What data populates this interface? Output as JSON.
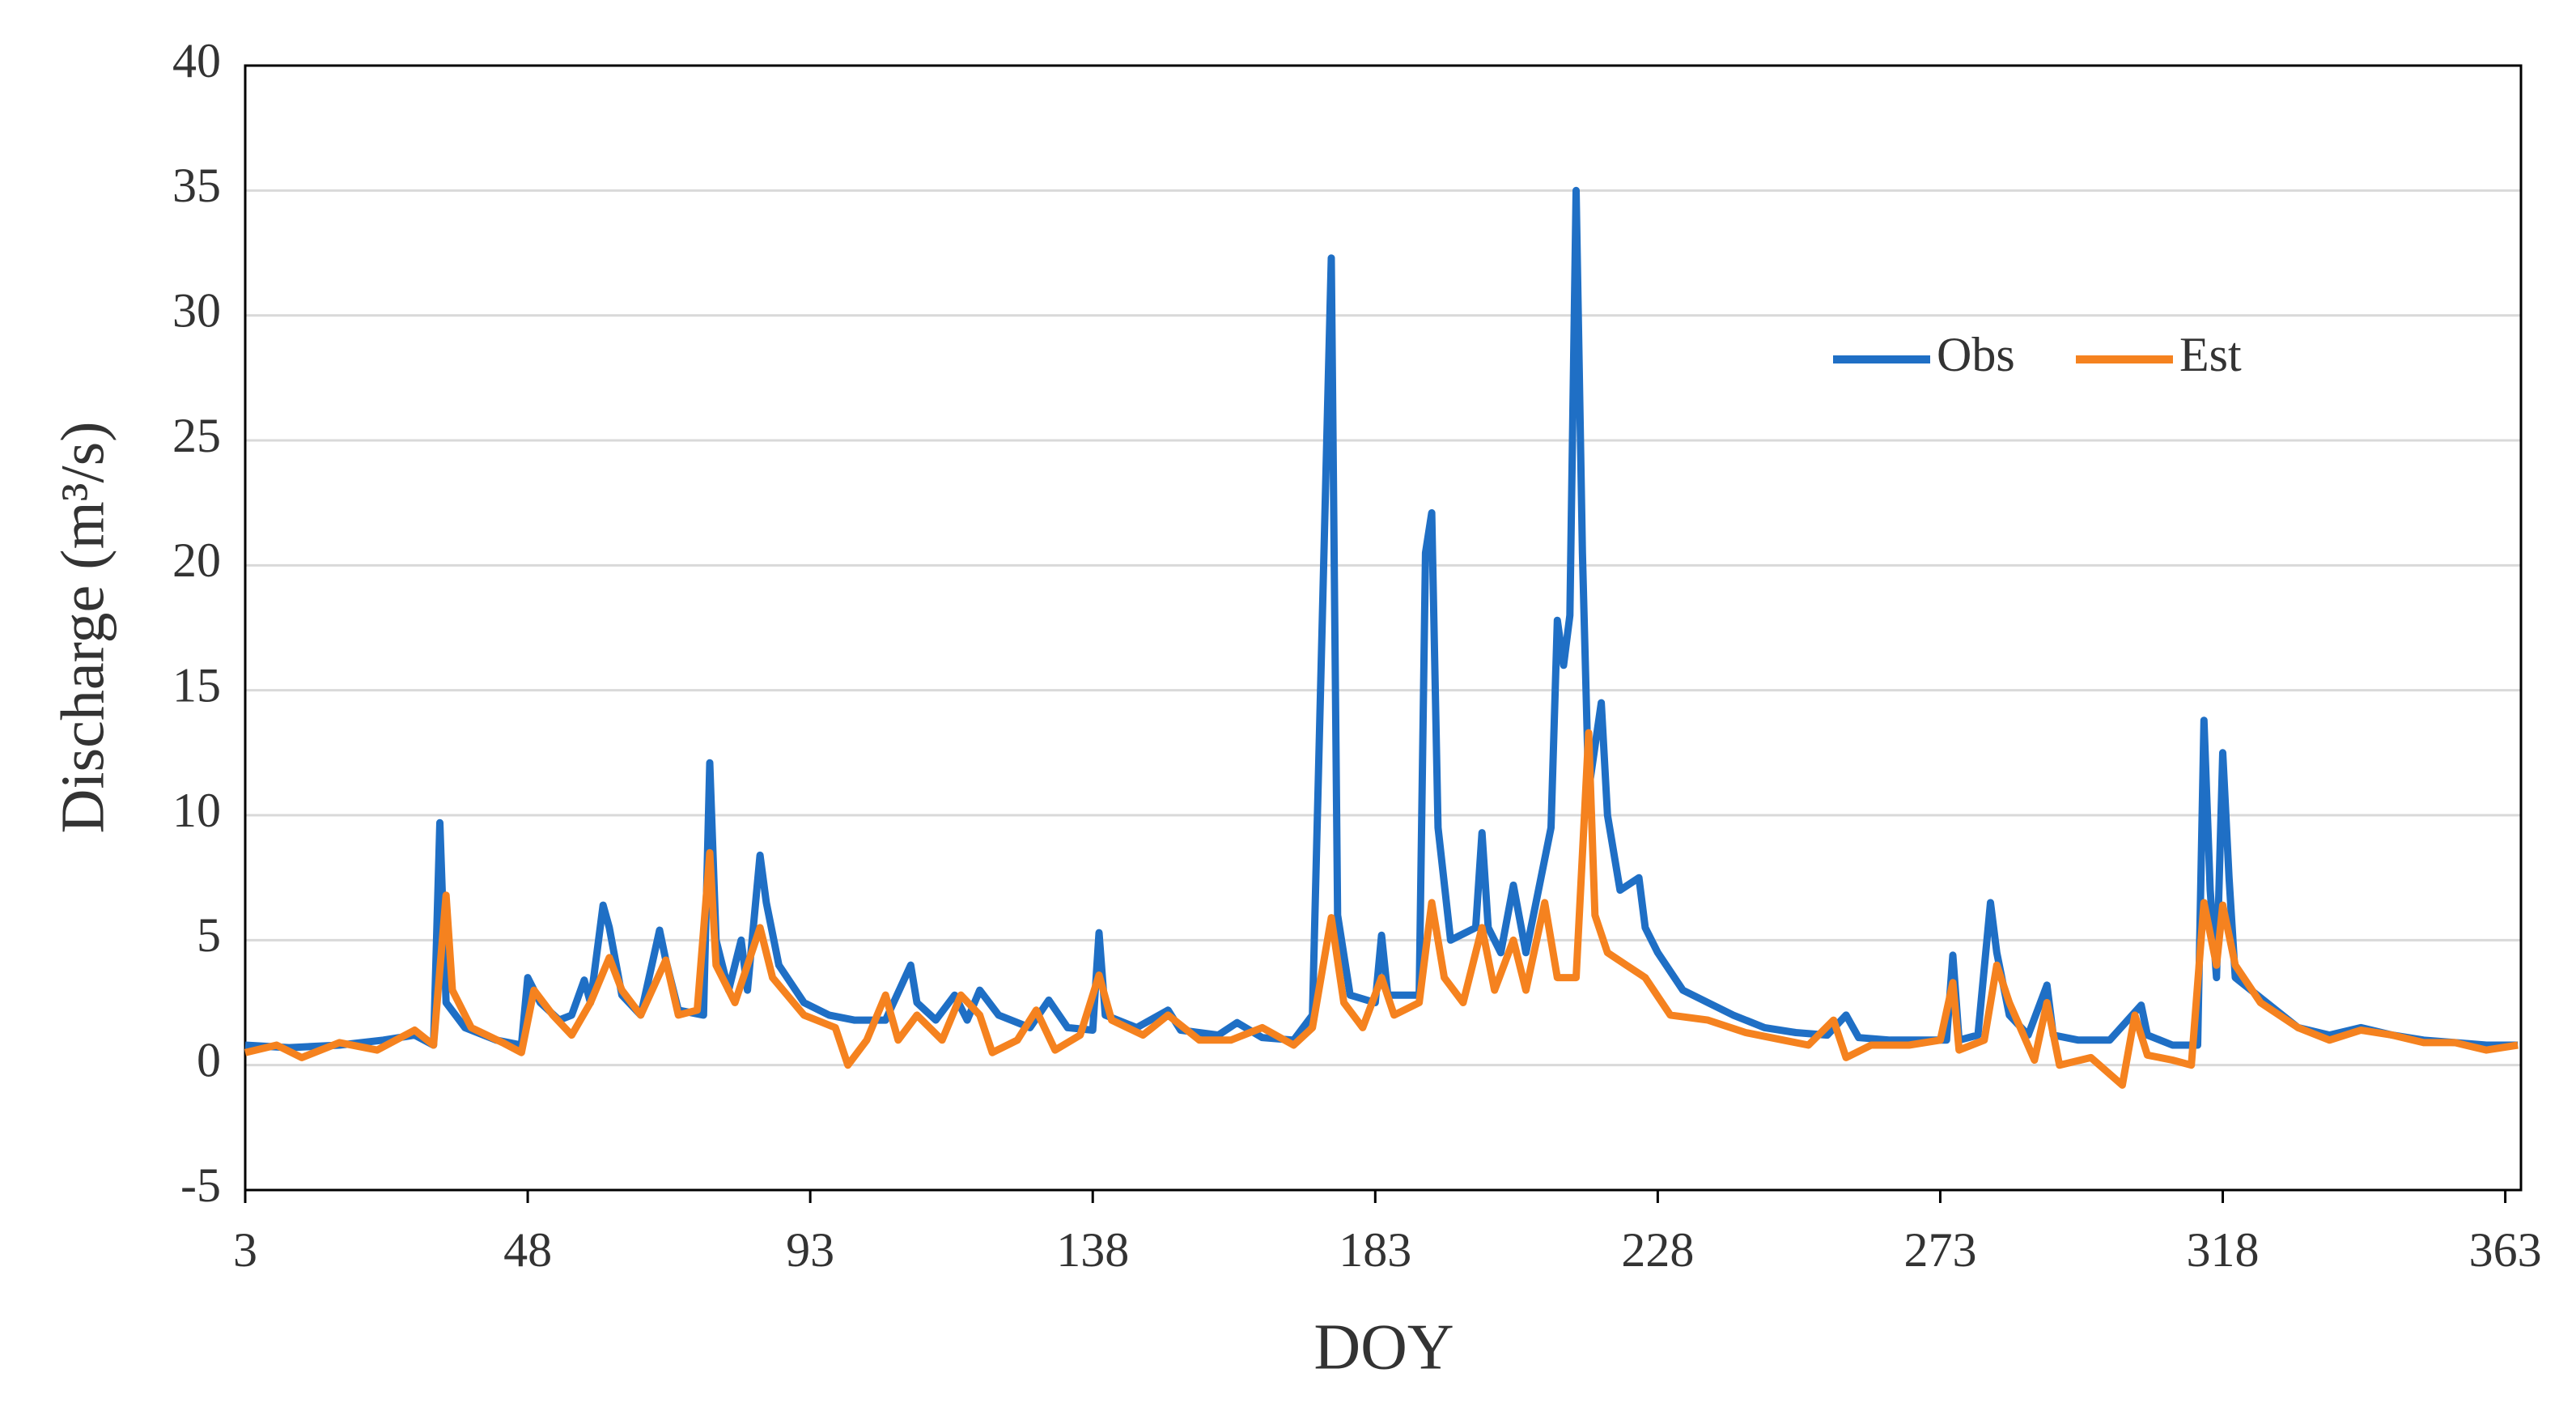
{
  "chart_data": {
    "type": "line",
    "x_label": "DOY",
    "y_label": "Discharge (m³/s)",
    "xlim": [
      3,
      365.5
    ],
    "xticks": [
      3,
      48,
      93,
      138,
      183,
      228,
      273,
      318,
      363
    ],
    "ylim": [
      -5,
      40
    ],
    "yticks": [
      -5,
      0,
      5,
      10,
      15,
      20,
      25,
      30,
      35,
      40
    ],
    "grid": true,
    "legend": "upper-right",
    "series": [
      {
        "name": "Obs",
        "color": "#1f6fc5",
        "x": [
          3,
          10,
          18,
          25,
          30,
          33,
          34,
          35,
          38,
          43,
          47,
          48,
          50,
          53,
          55,
          57,
          58,
          60,
          61,
          63,
          66,
          69,
          70,
          72,
          76,
          77,
          78,
          80,
          82,
          83,
          85,
          86,
          88,
          92,
          96,
          100,
          105,
          109,
          110,
          113,
          116,
          118,
          120,
          123,
          128,
          131,
          134,
          138,
          139,
          140,
          145,
          150,
          152,
          158,
          161,
          165,
          170,
          173,
          176,
          177,
          179,
          183,
          184,
          185,
          189,
          190,
          191,
          192,
          193,
          195,
          199,
          200,
          201,
          203,
          205,
          207,
          209,
          211,
          212,
          213,
          214,
          215,
          216,
          217,
          219,
          220,
          222,
          225,
          226,
          228,
          232,
          236,
          240,
          245,
          250,
          255,
          258,
          260,
          265,
          270,
          274,
          275,
          276,
          279,
          281,
          282,
          284,
          287,
          290,
          291,
          295,
          300,
          305,
          306,
          310,
          314,
          315,
          316,
          317,
          318,
          319,
          320,
          325,
          330,
          335,
          340,
          345,
          350,
          355,
          360,
          365
        ],
        "values": [
          0.8,
          0.7,
          0.8,
          1.0,
          1.2,
          0.8,
          9.7,
          2.5,
          1.5,
          1.0,
          0.8,
          3.5,
          2.5,
          1.8,
          2.0,
          3.4,
          2.5,
          6.4,
          5.5,
          2.8,
          2.0,
          5.4,
          4.2,
          2.2,
          2.0,
          12.1,
          5.0,
          3.0,
          5.0,
          3.0,
          8.4,
          6.5,
          4.0,
          2.5,
          2.0,
          1.8,
          1.8,
          4.0,
          2.5,
          1.8,
          2.8,
          1.8,
          3.0,
          2.0,
          1.5,
          2.6,
          1.5,
          1.4,
          5.3,
          2.0,
          1.5,
          2.2,
          1.4,
          1.2,
          1.7,
          1.1,
          1.0,
          2.0,
          32.3,
          6.0,
          2.8,
          2.5,
          5.2,
          2.8,
          2.8,
          2.8,
          20.5,
          22.1,
          9.5,
          5.0,
          5.5,
          9.3,
          5.5,
          4.5,
          7.2,
          4.5,
          7.0,
          9.5,
          17.8,
          16.0,
          18.0,
          35.0,
          20.5,
          11.0,
          14.5,
          10.0,
          7.0,
          7.5,
          5.5,
          4.5,
          3.0,
          2.5,
          2.0,
          1.5,
          1.3,
          1.2,
          2.0,
          1.1,
          1.0,
          1.0,
          1.0,
          4.4,
          1.0,
          1.2,
          6.5,
          4.5,
          2.0,
          1.2,
          3.2,
          1.2,
          1.0,
          1.0,
          2.4,
          1.2,
          0.8,
          0.8,
          13.8,
          7.0,
          3.5,
          12.5,
          7.5,
          3.5,
          2.5,
          1.5,
          1.2,
          1.5,
          1.2,
          1.0,
          0.9,
          0.8,
          0.8
        ]
      },
      {
        "name": "Est",
        "color": "#f5821f",
        "x": [
          3,
          8,
          12,
          18,
          24,
          30,
          33,
          35,
          36,
          39,
          44,
          47,
          49,
          52,
          55,
          58,
          61,
          63,
          66,
          70,
          72,
          75,
          77,
          78,
          81,
          83,
          85,
          87,
          92,
          97,
          99,
          102,
          105,
          107,
          110,
          114,
          117,
          120,
          122,
          126,
          129,
          132,
          136,
          139,
          141,
          146,
          150,
          155,
          160,
          165,
          170,
          173,
          176,
          178,
          181,
          184,
          186,
          190,
          192,
          194,
          197,
          200,
          202,
          205,
          207,
          210,
          212,
          215,
          217,
          218,
          220,
          223,
          226,
          230,
          236,
          242,
          248,
          252,
          256,
          258,
          262,
          268,
          273,
          275,
          276,
          280,
          282,
          284,
          288,
          290,
          292,
          297,
          302,
          304,
          306,
          310,
          313,
          315,
          317,
          318,
          320,
          324,
          330,
          335,
          340,
          345,
          350,
          355,
          360,
          365
        ],
        "values": [
          0.5,
          0.8,
          0.3,
          0.9,
          0.6,
          1.4,
          0.8,
          6.8,
          3.0,
          1.5,
          0.9,
          0.5,
          3.0,
          2.0,
          1.2,
          2.5,
          4.3,
          3.0,
          2.0,
          4.2,
          2.0,
          2.2,
          8.5,
          4.0,
          2.5,
          4.0,
          5.5,
          3.5,
          2.0,
          1.5,
          0.0,
          1.0,
          2.8,
          1.0,
          2.0,
          1.0,
          2.8,
          2.0,
          0.5,
          1.0,
          2.2,
          0.6,
          1.2,
          3.6,
          1.8,
          1.2,
          2.0,
          1.0,
          1.0,
          1.5,
          0.8,
          1.5,
          5.9,
          2.5,
          1.5,
          3.5,
          2.0,
          2.5,
          6.5,
          3.5,
          2.5,
          5.5,
          3.0,
          5.0,
          3.0,
          6.5,
          3.5,
          3.5,
          13.3,
          6.0,
          4.5,
          4.0,
          3.5,
          2.0,
          1.8,
          1.3,
          1.0,
          0.8,
          1.8,
          0.3,
          0.8,
          0.8,
          1.0,
          3.3,
          0.6,
          1.0,
          4.0,
          2.5,
          0.2,
          2.5,
          0.0,
          0.3,
          -0.8,
          2.0,
          0.4,
          0.2,
          0.0,
          6.5,
          4.0,
          6.4,
          4.0,
          2.5,
          1.5,
          1.0,
          1.4,
          1.2,
          0.9,
          0.9,
          0.6,
          0.8
        ]
      }
    ]
  }
}
